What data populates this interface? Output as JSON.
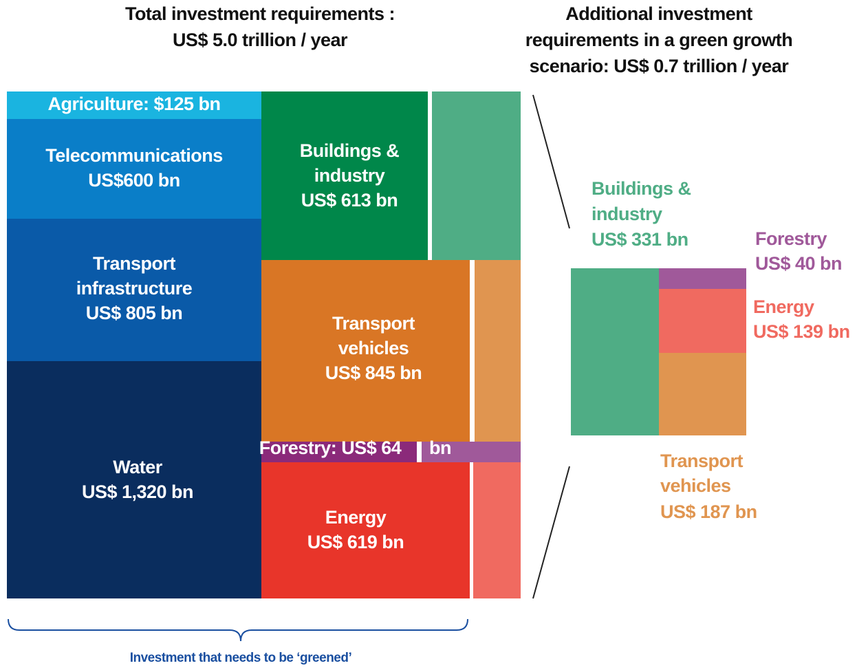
{
  "left_title": [
    "Total investment requirements :",
    "US$ 5.0 trillion / year"
  ],
  "right_title": [
    "Additional investment",
    "requirements in a green growth",
    "scenario: US$ 0.7 trillion / year"
  ],
  "blocks": {
    "agriculture": [
      "Agriculture: $125 bn"
    ],
    "telecommunications": [
      "Telecommunications",
      "US$600 bn"
    ],
    "transport_infrastructure": [
      "Transport",
      "infrastructure",
      "US$ 805 bn"
    ],
    "water": [
      "Water",
      "US$ 1,320 bn"
    ],
    "buildings": [
      "Buildings &",
      "industry",
      "US$ 613 bn"
    ],
    "transport_vehicles": [
      "Transport",
      "vehicles",
      "US$ 845 bn"
    ],
    "forestry": [
      "Forestry: US$ 64",
      "bn"
    ],
    "energy": [
      "Energy",
      "US$ 619 bn"
    ]
  },
  "green": {
    "buildings": [
      "Buildings &",
      "industry",
      "US$ 331 bn"
    ],
    "forestry": [
      "Forestry",
      "US$ 40 bn"
    ],
    "energy": [
      "Energy",
      "US$ 139 bn"
    ],
    "transport_vehicles": [
      "Transport",
      "vehicles",
      "US$ 187 bn"
    ]
  },
  "footnote": "Investment that needs to be ‘greened’"
}
